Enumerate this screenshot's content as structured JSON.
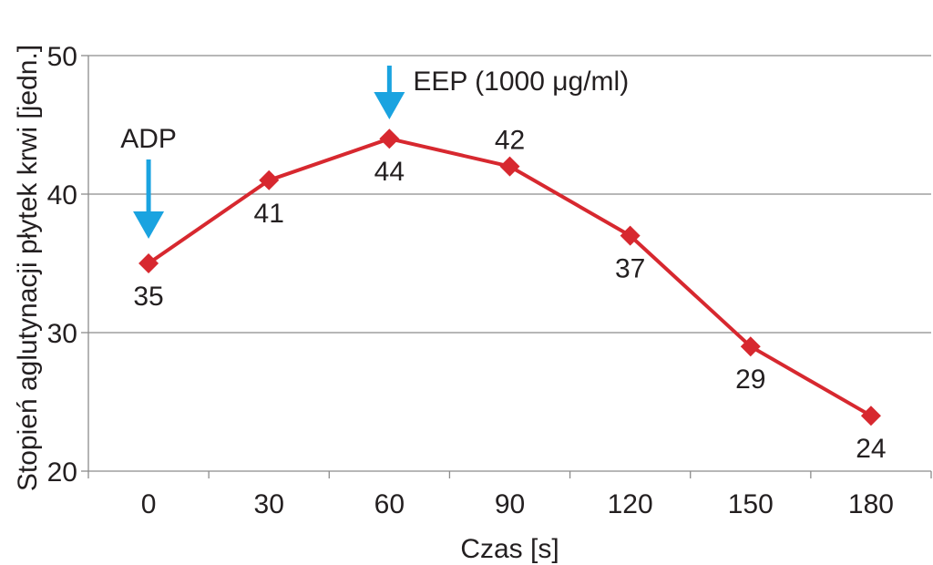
{
  "chart_data": {
    "type": "line",
    "xlabel": "Czas [s]",
    "ylabel": "Stopień aglutynacji płytek krwi [jedn.]",
    "categories": [
      "0",
      "30",
      "60",
      "90",
      "120",
      "150",
      "180"
    ],
    "ylim": [
      20,
      50
    ],
    "yticks": [
      "20",
      "30",
      "40",
      "50"
    ],
    "grid": true,
    "series": [
      {
        "values": [
          35,
          41,
          44,
          42,
          37,
          29,
          24
        ],
        "color": "#d7282f"
      }
    ],
    "data_labels": [
      "35",
      "41",
      "44",
      "42",
      "37",
      "29",
      "24"
    ],
    "annotations": [
      {
        "text": "ADP",
        "at_category": "0",
        "marker": "down-arrow",
        "color": "#1aa3e0"
      },
      {
        "text": "EEP (1000 μg/ml)",
        "at_category": "60",
        "marker": "down-arrow",
        "color": "#1aa3e0"
      }
    ]
  }
}
